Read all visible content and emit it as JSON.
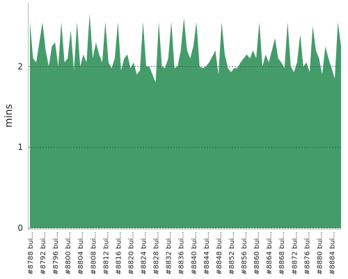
{
  "chart_data": {
    "type": "area",
    "y_label": "mins",
    "color": "#449c6b",
    "categories": [
      "#8788 bui...",
      null,
      null,
      null,
      "#8792 bui...",
      null,
      null,
      null,
      "#8796 bui...",
      null,
      null,
      null,
      "#8800 bui...",
      null,
      null,
      null,
      "#8804 bui...",
      null,
      null,
      null,
      "#8808 bui...",
      null,
      null,
      null,
      "#8812 bui...",
      null,
      null,
      null,
      "#8816 bui...",
      null,
      null,
      null,
      "#8820 bui...",
      null,
      null,
      null,
      "#8824 bui...",
      null,
      null,
      null,
      "#8828 bui...",
      null,
      null,
      null,
      "#8832 bui...",
      null,
      null,
      null,
      "#8836 bui...",
      null,
      null,
      null,
      "#8840 bui...",
      null,
      null,
      null,
      "#8844 bui...",
      null,
      null,
      null,
      "#8848 bui...",
      null,
      null,
      null,
      "#8852 bui...",
      null,
      null,
      null,
      "#8856 bui...",
      null,
      null,
      null,
      "#8860 bui...",
      null,
      null,
      null,
      "#8864 bui...",
      null,
      null,
      null,
      "#8868 bui...",
      null,
      null,
      null,
      "#8872 bui...",
      null,
      null,
      null,
      "#8876 bui...",
      null,
      null,
      null,
      "#8880 bui...",
      null,
      null,
      null,
      "#8884 bui...",
      null,
      null,
      null
    ],
    "values": [
      2.55,
      2.1,
      2.05,
      2.3,
      2.55,
      2.2,
      2.0,
      2.25,
      2.3,
      2.0,
      2.55,
      2.05,
      2.1,
      2.45,
      1.95,
      2.55,
      2.0,
      2.15,
      2.05,
      2.65,
      2.1,
      2.3,
      2.15,
      2.05,
      2.55,
      2.05,
      1.98,
      2.1,
      2.55,
      1.95,
      2.1,
      2.15,
      1.98,
      2.05,
      1.9,
      1.95,
      2.55,
      2.0,
      2.0,
      1.9,
      1.8,
      2.55,
      2.0,
      1.98,
      2.1,
      2.55,
      1.98,
      2.0,
      2.2,
      2.6,
      2.2,
      2.1,
      2.25,
      2.55,
      2.0,
      1.98,
      2.0,
      2.05,
      2.12,
      2.2,
      1.9,
      2.55,
      2.15,
      1.98,
      1.93,
      1.98,
      1.98,
      2.05,
      2.1,
      2.15,
      2.1,
      2.2,
      2.1,
      2.55,
      2.0,
      2.15,
      2.05,
      2.2,
      2.35,
      2.1,
      2.05,
      1.98,
      2.55,
      2.0,
      1.93,
      2.05,
      2.4,
      2.0,
      2.05,
      1.93,
      2.5,
      2.2,
      2.1,
      1.9,
      2.25,
      2.1,
      1.98,
      1.85,
      2.55,
      2.25
    ],
    "ylim": [
      0,
      2.78
    ],
    "yticks": [
      0,
      1,
      2
    ],
    "grid": true
  }
}
